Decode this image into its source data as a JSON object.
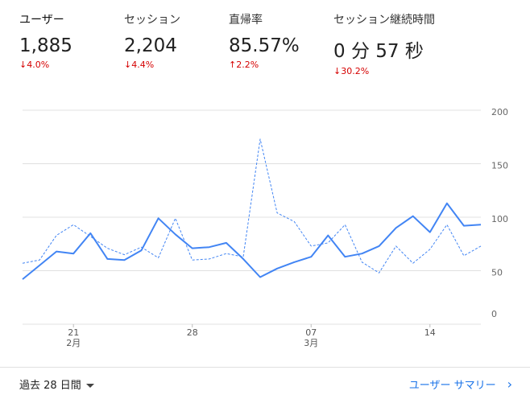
{
  "metrics": [
    {
      "label": "ユーザー",
      "value": "1,885",
      "delta": "4.0%",
      "direction": "down",
      "active": true
    },
    {
      "label": "セッション",
      "value": "2,204",
      "delta": "4.4%",
      "direction": "down",
      "active": false
    },
    {
      "label": "直帰率",
      "value": "85.57%",
      "delta": "2.2%",
      "direction": "up",
      "active": false
    },
    {
      "label": "セッション継続時間",
      "value": "0 分 57 秒",
      "delta": "30.2%",
      "direction": "down",
      "active": false
    }
  ],
  "footer": {
    "range_label": "過去 28 日間",
    "summary_link": "ユーザー サマリー"
  },
  "colors": {
    "accent": "#4285f4",
    "negative": "#d50000",
    "grid": "#e0e0e0",
    "link": "#1a73e8"
  },
  "chart_data": {
    "type": "line",
    "ylim": [
      0,
      200
    ],
    "yticks": [
      "0",
      "50",
      "100",
      "150",
      "200"
    ],
    "xticks": [
      {
        "day": 3,
        "label": "21",
        "sub": "2月"
      },
      {
        "day": 10,
        "label": "28",
        "sub": ""
      },
      {
        "day": 17,
        "label": "07",
        "sub": "3月"
      },
      {
        "day": 24,
        "label": "14",
        "sub": ""
      }
    ],
    "series": [
      {
        "style": "solid",
        "values": [
          42,
          55,
          68,
          66,
          85,
          61,
          60,
          69,
          99,
          84,
          71,
          72,
          76,
          61,
          44,
          52,
          58,
          63,
          83,
          63,
          66,
          73,
          90,
          101,
          86,
          113,
          92,
          93
        ]
      },
      {
        "style": "dashed",
        "values": [
          57,
          60,
          83,
          93,
          82,
          71,
          65,
          72,
          62,
          99,
          60,
          61,
          66,
          63,
          173,
          104,
          96,
          73,
          76,
          93,
          58,
          48,
          73,
          57,
          70,
          93,
          64,
          73
        ]
      }
    ]
  }
}
